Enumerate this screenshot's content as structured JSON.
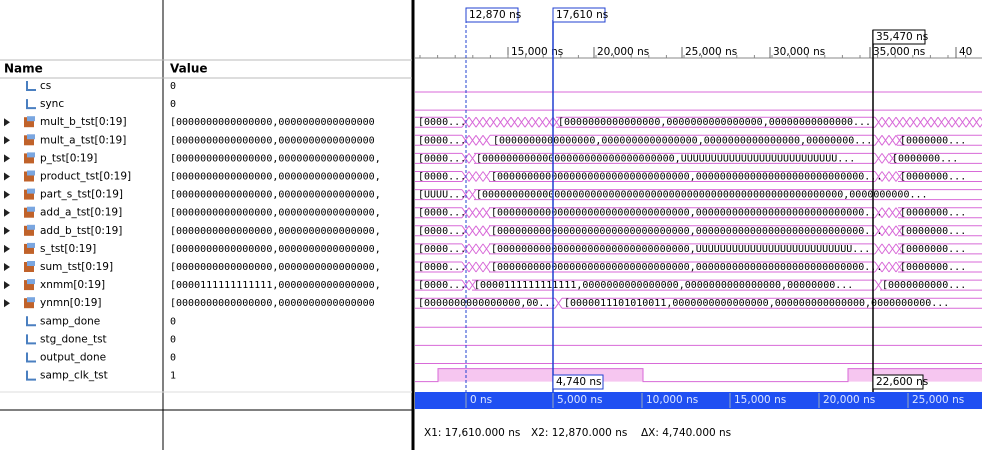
{
  "header": {
    "name_col": "Name",
    "value_col": "Value"
  },
  "signals": [
    {
      "name": "cs",
      "value": "0"
    },
    {
      "name": "sync",
      "value": "0"
    },
    {
      "name": "mult_b_tst[0:19]",
      "value": "[0000000000000000,0000000000000000",
      "wave": [
        "[0000...",
        "[0000000000000000,0000000000000000,00000000000000..."
      ]
    },
    {
      "name": "mult_a_tst[0:19]",
      "value": "[0000000000000000,0000000000000000",
      "wave": [
        "[0000...",
        "[0000000000000000,0000000000000000,0000000000000000,00000000...",
        "[0000000..."
      ]
    },
    {
      "name": "p_tst[0:19]",
      "value": "[0000000000000000,0000000000000000,",
      "wave": [
        "[0000...",
        "[00000000000000000000000000000000,UUUUUUUUUUUUUUUUUUUUUUUUUU...",
        "[0000000..."
      ]
    },
    {
      "name": "product_tst[0:19]",
      "value": "[0000000000000000,0000000000000000,",
      "wave": [
        "[0000...",
        "[00000000000000000000000000000000,0000000000000000000000000000...",
        "[0000000..."
      ]
    },
    {
      "name": "part_s_tst[0:19]",
      "value": "[0000000000000000,0000000000000000,",
      "wave": [
        "[UUUU...",
        "[000000000000000000000000000000000000000000000000000000000000,0000000000..."
      ]
    },
    {
      "name": "add_a_tst[0:19]",
      "value": "[0000000000000000,0000000000000000,",
      "wave": [
        "[0000...",
        "[00000000000000000000000000000000,0000000000000000000000000000...",
        "[0000000..."
      ]
    },
    {
      "name": "add_b_tst[0:19]",
      "value": "[0000000000000000,0000000000000000,",
      "wave": [
        "[0000...",
        "[00000000000000000000000000000000,0000000000000000000000000000...",
        "[0000000..."
      ]
    },
    {
      "name": "s_tst[0:19]",
      "value": "[0000000000000000,0000000000000000,",
      "wave": [
        "[0000...",
        "[00000000000000000000000000000000,UUUUUUUUUUUUUUUUUUUUUUUUUU...",
        "[0000000..."
      ]
    },
    {
      "name": "sum_tst[0:19]",
      "value": "[0000000000000000,0000000000000000,",
      "wave": [
        "[0000...",
        "[00000000000000000000000000000000,0000000000000000000000000000...",
        "[0000000..."
      ]
    },
    {
      "name": "xnmm[0:19]",
      "value": "[0000111111111111,0000000000000000,",
      "wave": [
        "[0000...",
        "[0000111111111111,0000000000000000,0000000000000000,00000000...",
        "[0000000000..."
      ]
    },
    {
      "name": "ynmn[0:19]",
      "value": "[0000000000000000,0000000000000000",
      "wave": [
        "[0000000000000000,00...",
        "[0000011101010011,0000000000000000,000000000000000,0000000000..."
      ]
    },
    {
      "name": "samp_done",
      "value": "0"
    },
    {
      "name": "stg_done_tst",
      "value": "0"
    },
    {
      "name": "output_done",
      "value": "0"
    },
    {
      "name": "samp_clk_tst",
      "value": "1"
    }
  ],
  "cursors": {
    "top": [
      "12,870 ns",
      "17,610 ns",
      "35,470 ns"
    ],
    "deltas": [
      "4,740 ns",
      "22,600 ns"
    ]
  },
  "ruler_top": [
    "15,000 ns",
    "20,000 ns",
    "25,000 ns",
    "30,000 ns",
    "35,000 ns",
    "40"
  ],
  "ruler_bottom": [
    "0 ns",
    "5,000 ns",
    "10,000 ns",
    "15,000 ns",
    "20,000 ns",
    "25,000 ns"
  ],
  "status": {
    "x1": "X1: 17,610.000 ns",
    "x2": "X2: 12,870.000 ns",
    "dx": "ΔX: 4,740.000 ns"
  }
}
